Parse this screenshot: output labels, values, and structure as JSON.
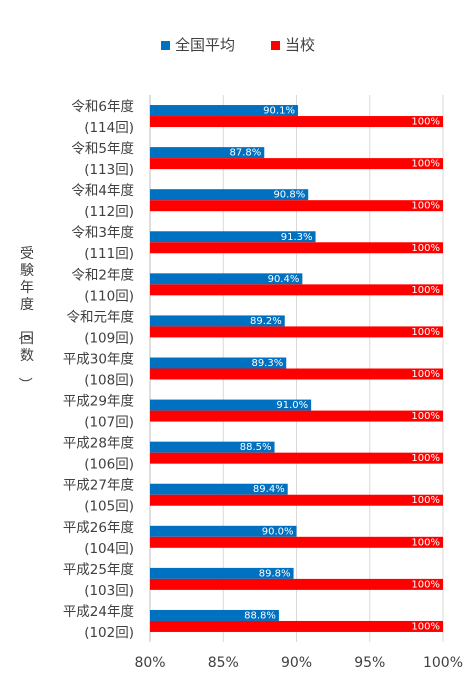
{
  "chart_data": {
    "type": "bar",
    "orientation": "horizontal",
    "ylabel": "受験年度（回数）",
    "xlim": [
      80,
      100
    ],
    "xticks": [
      "80%",
      "85%",
      "90%",
      "95%",
      "100%"
    ],
    "xtick_values": [
      80,
      85,
      90,
      95,
      100
    ],
    "grid": true,
    "legend_position": "top",
    "categories": [
      {
        "year": "令和6年度",
        "round": "(114回)"
      },
      {
        "year": "令和5年度",
        "round": "(113回)"
      },
      {
        "year": "令和4年度",
        "round": "(112回)"
      },
      {
        "year": "令和3年度",
        "round": "(111回)"
      },
      {
        "year": "令和2年度",
        "round": "(110回)"
      },
      {
        "year": "令和元年度",
        "round": "(109回)"
      },
      {
        "year": "平成30年度",
        "round": "(108回)"
      },
      {
        "year": "平成29年度",
        "round": "(107回)"
      },
      {
        "year": "平成28年度",
        "round": "(106回)"
      },
      {
        "year": "平成27年度",
        "round": "(105回)"
      },
      {
        "year": "平成26年度",
        "round": "(104回)"
      },
      {
        "year": "平成25年度",
        "round": "(103回)"
      },
      {
        "year": "平成24年度",
        "round": "(102回)"
      }
    ],
    "series": [
      {
        "name": "全国平均",
        "color": "#0070C0",
        "values": [
          90.1,
          87.8,
          90.8,
          91.3,
          90.4,
          89.2,
          89.3,
          91.0,
          88.5,
          89.4,
          90.0,
          89.8,
          88.8
        ],
        "labels": [
          "90.1%",
          "87.8%",
          "90.8%",
          "91.3%",
          "90.4%",
          "89.2%",
          "89.3%",
          "91.0%",
          "88.5%",
          "89.4%",
          "90.0%",
          "89.8%",
          "88.8%"
        ]
      },
      {
        "name": "当校",
        "color": "#FF0000",
        "values": [
          100,
          100,
          100,
          100,
          100,
          100,
          100,
          100,
          100,
          100,
          100,
          100,
          100
        ],
        "labels": [
          "100%",
          "100%",
          "100%",
          "100%",
          "100%",
          "100%",
          "100%",
          "100%",
          "100%",
          "100%",
          "100%",
          "100%",
          "100%"
        ]
      }
    ]
  }
}
